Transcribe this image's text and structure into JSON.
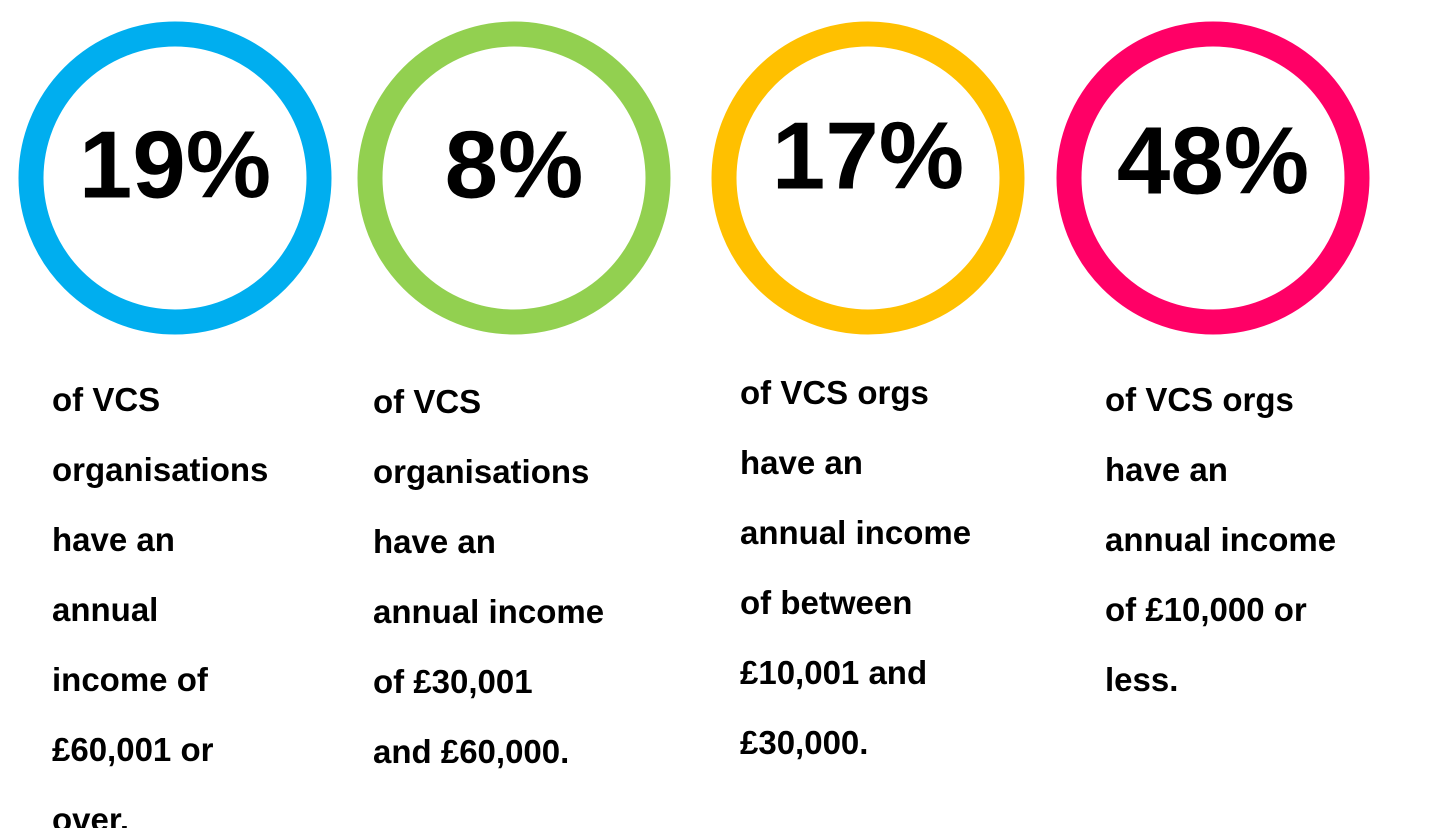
{
  "stats": [
    {
      "percent": "19%",
      "color": "#00aeef",
      "lines": [
        "of VCS",
        "organisations",
        "have an",
        "annual",
        "income of",
        "£60,001 or",
        "over."
      ]
    },
    {
      "percent": "8%",
      "color": "#92d050",
      "lines": [
        "of VCS",
        "organisations",
        "have an",
        "annual income",
        "of £30,001",
        "and £60,000."
      ]
    },
    {
      "percent": "17%",
      "color": "#ffc000",
      "lines": [
        "of VCS orgs",
        "have an",
        "annual income",
        "of between",
        "£10,001 and",
        "£30,000."
      ]
    },
    {
      "percent": "48%",
      "color": "#ff0066",
      "lines": [
        "of VCS orgs",
        "have an",
        "annual income",
        "of £10,000 or",
        "less."
      ]
    }
  ]
}
